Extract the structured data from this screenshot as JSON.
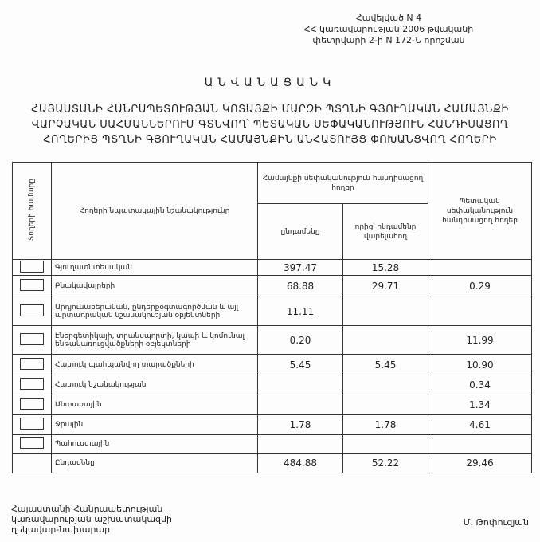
{
  "annex": [
    "Հավելված N 4",
    "ՀՀ կառավարության 2006 թվականի",
    "փետրվարի 2-ի N 172-Ն որոշման"
  ],
  "heading": "ԱՆՎԱՆԱՑԱՆԿ",
  "title": [
    "ՀԱՅԱՍՏԱՆԻ ՀԱՆՐԱՊԵՏՈՒԹՅԱՆ ԿՈՏԱՅՔԻ ՄԱՐԶԻ ՊՏՂՆԻ ԳՅՈՒՂԱԿԱՆ ՀԱՄԱՅՆՔԻ",
    "ՎԱՐՉԱԿԱՆ ՍԱՀՄԱՆՆԵՐՈՒՄ ԳՏՆՎՈՂ՝ ՊԵՏԱԿԱՆ ՍԵՓԱԿԱՆՈՒԹՅՈՒՆ ՀԱՆԴԻՍԱՑՈՂ",
    "ՀՈՂԵՐԻՑ ՊՏՂՆԻ ԳՅՈՒՂԱԿԱՆ ՀԱՄԱՅՆՔԻՆ ԱՆՀԱՏՈՒՅՑ ՓՈԽԱՆՑՎՈՂ ՀՈՂԵՐԻ"
  ],
  "table": {
    "headers": {
      "row_number": "Տողերի համարը",
      "purpose": "Հողերի նպատակային նշանակությունը",
      "community_group": "Համայնքի սեփականություն հանդիսացող հողեր",
      "total": "ընդամենը",
      "of_which": "որից՝ ընդամենը վարելահող",
      "state": "Պետական սեփականություն հանդիսացող հողեր"
    },
    "rows": [
      {
        "label": "Գյուղատնտեսական",
        "total": "397.47",
        "of_which": "15.28",
        "state": ""
      },
      {
        "label": "Բնակավայրերի",
        "total": "68.88",
        "of_which": "29.71",
        "state": "0.29"
      },
      {
        "label": "Արդյունաբերական, ընդերքօգտագործման և այլ արտադրական նշանակության օբյեկտների",
        "total": "11.11",
        "of_which": "",
        "state": ""
      },
      {
        "label": "Էներգետիկայի, տրանսպորտի, կապի և կոմունալ ենթակառուցվածքների օբյեկտների",
        "total": "0.20",
        "of_which": "",
        "state": "11.99"
      },
      {
        "label": "Հատուկ պահպանվող տարածքների",
        "total": "5.45",
        "of_which": "5.45",
        "state": "10.90"
      },
      {
        "label": "Հատուկ նշանակության",
        "total": "",
        "of_which": "",
        "state": "0.34"
      },
      {
        "label": "Անտառային",
        "total": "",
        "of_which": "",
        "state": "1.34"
      },
      {
        "label": "Ջրային",
        "total": "1.78",
        "of_which": "1.78",
        "state": "4.61"
      },
      {
        "label": "Պահուստային",
        "total": "",
        "of_which": "",
        "state": ""
      }
    ],
    "totals": {
      "label": "Ընդամենը",
      "total": "484.88",
      "of_which": "52.22",
      "state": "29.46"
    }
  },
  "footer": {
    "position": [
      "Հայաստանի Հանրապետության",
      "կառավարության աշխատակազմի",
      "ղեկավար-նախարար"
    ],
    "signatory": "Մ. Թոփուզյան"
  }
}
